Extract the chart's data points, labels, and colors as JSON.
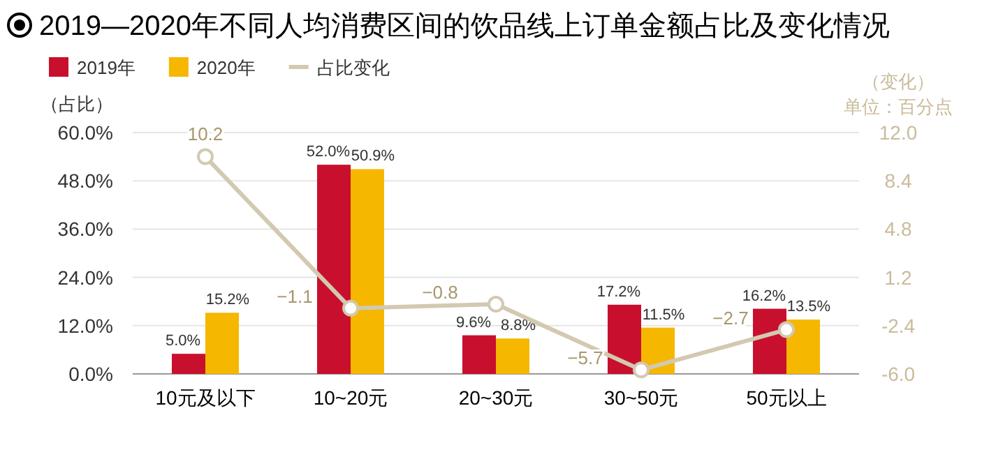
{
  "chart_data": {
    "type": "bar",
    "title": "2019—2020年不同人均消费区间的饮品线上订单金额占比及变化情况",
    "categories": [
      "10元及以下",
      "10~20元",
      "20~30元",
      "30~50元",
      "50元以上"
    ],
    "series": [
      {
        "name": "2019年",
        "color": "#c8102e",
        "values": [
          5.0,
          52.0,
          9.6,
          17.2,
          16.2
        ],
        "value_labels": [
          "5.0%",
          "52.0%",
          "9.6%",
          "17.2%",
          "16.2%"
        ]
      },
      {
        "name": "2020年",
        "color": "#f5b700",
        "values": [
          15.2,
          50.9,
          8.8,
          11.5,
          13.5
        ],
        "value_labels": [
          "15.2%",
          "50.9%",
          "8.8%",
          "11.5%",
          "13.5%"
        ]
      },
      {
        "name": "占比变化",
        "type": "line",
        "axis": "y2",
        "color": "#d3c9b1",
        "marker": "circle",
        "values": [
          10.2,
          -1.1,
          -0.8,
          -5.7,
          -2.7
        ],
        "value_labels": [
          "10.2",
          "−1.1",
          "−0.8",
          "−5.7",
          "−2.7"
        ]
      }
    ],
    "ylabel": "（占比）",
    "y2label": "（变化）",
    "annotations": [
      "单位：百分点"
    ],
    "ylim": [
      0,
      60
    ],
    "yticks": [
      {
        "value": 0,
        "label": "0.0%"
      },
      {
        "value": 12,
        "label": "12.0%"
      },
      {
        "value": 24,
        "label": "24.0%"
      },
      {
        "value": 36,
        "label": "36.0%"
      },
      {
        "value": 48,
        "label": "48.0%"
      },
      {
        "value": 60,
        "label": "60.0%"
      }
    ],
    "y2lim": [
      -6,
      12
    ],
    "y2ticks": [
      {
        "value": -6,
        "label": "-6.0"
      },
      {
        "value": -2.4,
        "label": "-2.4"
      },
      {
        "value": 1.2,
        "label": "1.2"
      },
      {
        "value": 4.8,
        "label": "4.8"
      },
      {
        "value": 8.4,
        "label": "8.4"
      },
      {
        "value": 12,
        "label": "12.0"
      }
    ],
    "grid": "y",
    "legend": "top left"
  }
}
